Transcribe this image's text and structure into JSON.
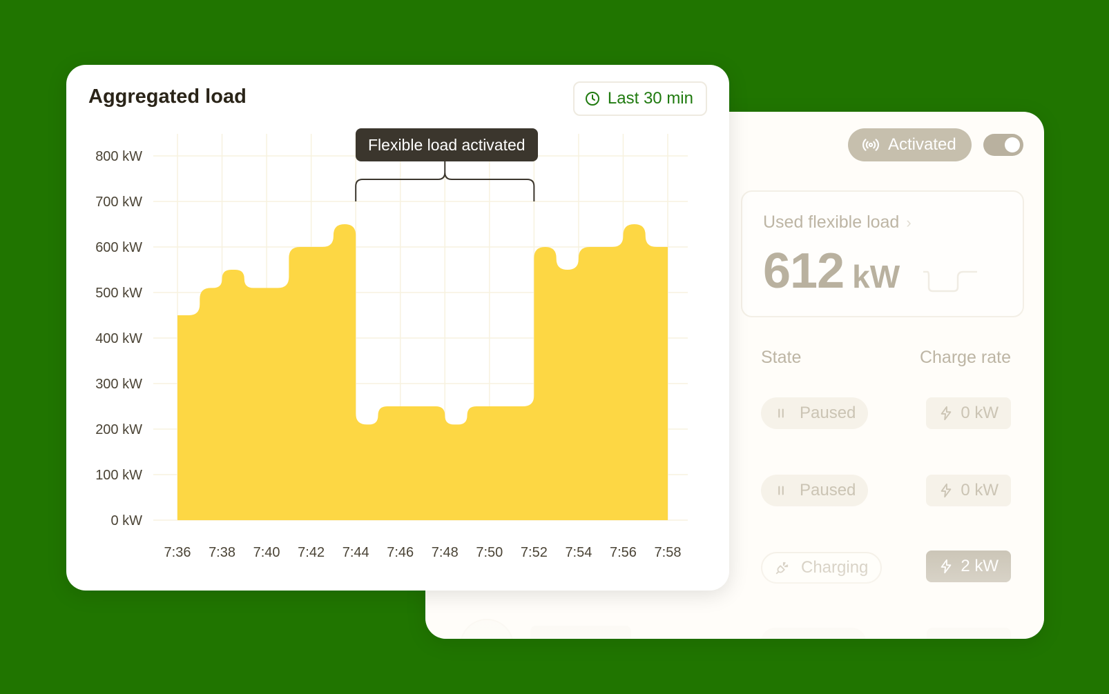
{
  "side_panel": {
    "activated_label": "Activated",
    "used_label": "Used flexible load",
    "used_value": "612",
    "used_unit": "kW",
    "col_state": "State",
    "col_rate": "Charge rate",
    "rows": [
      {
        "state": "Paused",
        "rate": "0 kW"
      },
      {
        "state": "Paused",
        "rate": "0 kW"
      },
      {
        "state": "Charging",
        "rate": "2 kW"
      }
    ]
  },
  "chart_card": {
    "title": "Aggregated load",
    "time_range": "Last 30 min",
    "annotation": "Flexible load activated"
  },
  "chart_data": {
    "type": "area",
    "x": [
      "7:36",
      "7:37",
      "7:38",
      "7:39",
      "7:40",
      "7:41",
      "7:42",
      "7:43",
      "7:44",
      "7:45",
      "7:46",
      "7:47",
      "7:48",
      "7:49",
      "7:50",
      "7:51",
      "7:52",
      "7:53",
      "7:54",
      "7:55",
      "7:56",
      "7:57",
      "7:58"
    ],
    "values": [
      450,
      510,
      550,
      510,
      510,
      600,
      600,
      650,
      210,
      250,
      250,
      250,
      210,
      250,
      250,
      250,
      600,
      550,
      600,
      600,
      650,
      600,
      600
    ],
    "ylim": [
      0,
      800
    ],
    "y_ticks": [
      0,
      100,
      200,
      300,
      400,
      500,
      600,
      700,
      800
    ],
    "y_tick_labels": [
      "0 kW",
      "100 kW",
      "200 kW",
      "300 kW",
      "400 kW",
      "500 kW",
      "600 kW",
      "700 kW",
      "800 kW"
    ],
    "x_tick_labels": [
      "7:36",
      "7:38",
      "7:40",
      "7:42",
      "7:44",
      "7:46",
      "7:48",
      "7:50",
      "7:52",
      "7:54",
      "7:56",
      "7:58"
    ],
    "highlight": {
      "from": "7:44",
      "to": "7:52"
    },
    "grid": true,
    "color": "#fdd744"
  }
}
